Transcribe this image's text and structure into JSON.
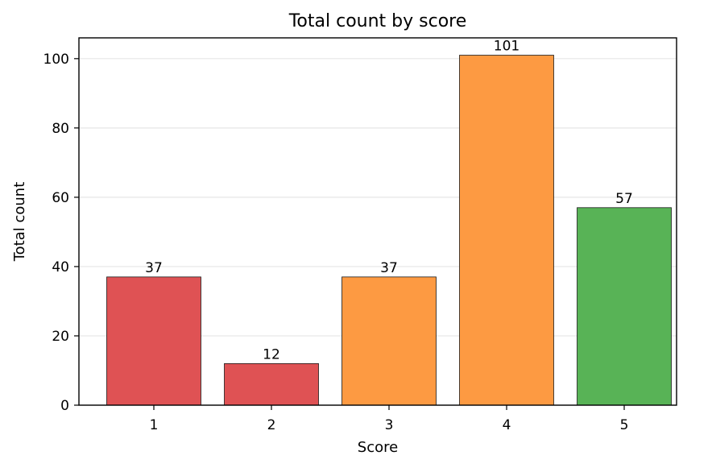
{
  "chart_data": {
    "type": "bar",
    "title": "Total count by score",
    "xlabel": "Score",
    "ylabel": "Total count",
    "categories": [
      "1",
      "2",
      "3",
      "4",
      "5"
    ],
    "values": [
      37,
      12,
      37,
      101,
      57
    ],
    "data_labels": [
      "37",
      "12",
      "37",
      "101",
      "57"
    ],
    "bar_colors": [
      "#df5254",
      "#df5254",
      "#fd9a42",
      "#fd9a42",
      "#58b356"
    ],
    "ylim": [
      0,
      106
    ],
    "yticks": [
      0,
      20,
      40,
      60,
      80,
      100
    ],
    "grid": "horizontal",
    "legend": "none"
  }
}
